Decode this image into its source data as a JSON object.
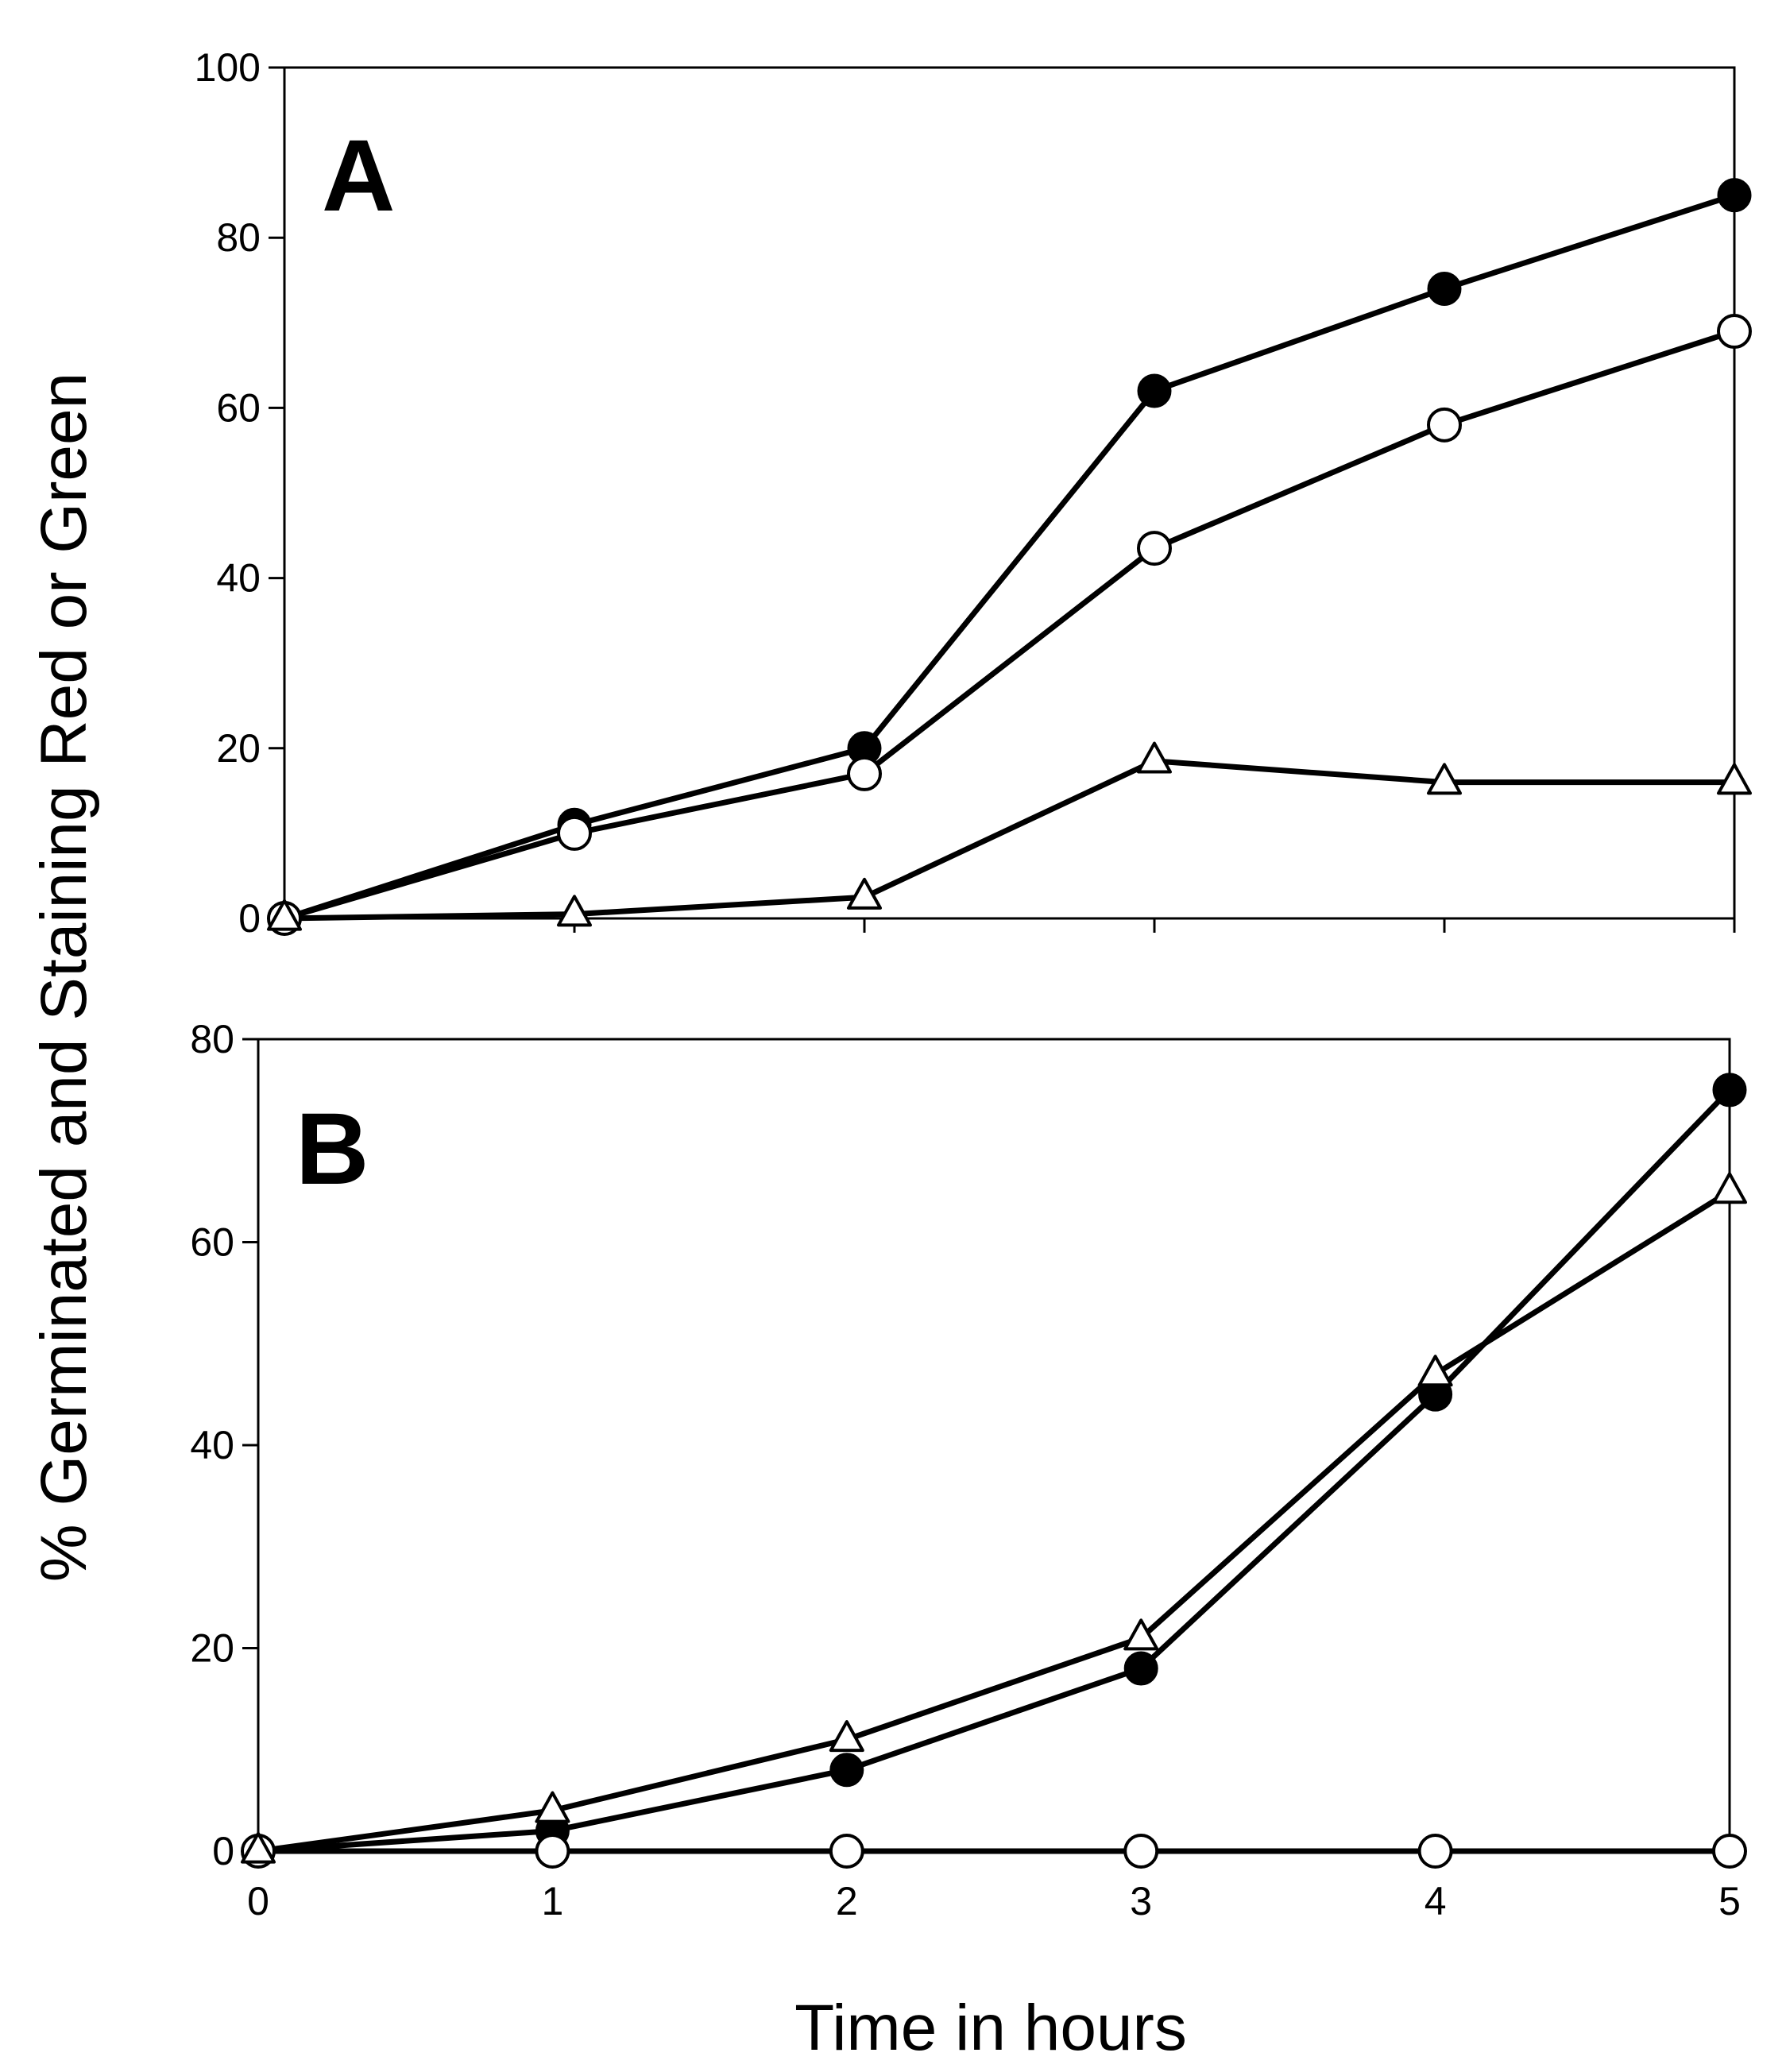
{
  "chart_data": [
    {
      "type": "line",
      "panel_label": "A",
      "x": [
        0,
        1,
        2,
        3,
        4,
        5
      ],
      "ylim": [
        0,
        100
      ],
      "xlim": [
        0,
        5
      ],
      "yticks": [
        0,
        20,
        40,
        60,
        80,
        100
      ],
      "xticks": [
        0,
        1,
        2,
        3,
        4,
        5
      ],
      "show_x_tick_labels": false,
      "grid": false,
      "series": [
        {
          "marker": "filled-circle",
          "values": [
            0,
            11,
            20,
            62,
            74,
            85
          ]
        },
        {
          "marker": "open-circle",
          "values": [
            0,
            10,
            17,
            43.5,
            58,
            69
          ]
        },
        {
          "marker": "open-triangle",
          "values": [
            0,
            0.5,
            2.5,
            18.5,
            16,
            16
          ]
        }
      ]
    },
    {
      "type": "line",
      "panel_label": "B",
      "x": [
        0,
        1,
        2,
        3,
        4,
        5
      ],
      "ylim": [
        0,
        80
      ],
      "xlim": [
        0,
        5
      ],
      "yticks": [
        0,
        20,
        40,
        60,
        80
      ],
      "xticks": [
        0,
        1,
        2,
        3,
        4,
        5
      ],
      "show_x_tick_labels": true,
      "grid": false,
      "series": [
        {
          "marker": "filled-circle",
          "values": [
            0,
            2,
            8,
            18,
            45,
            75
          ]
        },
        {
          "marker": "open-circle",
          "values": [
            0,
            0,
            0,
            0,
            0,
            0
          ]
        },
        {
          "marker": "open-triangle",
          "values": [
            0,
            4,
            11,
            21,
            47,
            65
          ]
        }
      ]
    }
  ],
  "shared_labels": {
    "xlabel": "Time in hours",
    "ylabel": "% Germinated and Staining Red or Green"
  },
  "colors": {
    "line": "#000000",
    "marker_fill_open": "#ffffff",
    "marker_fill_filled": "#000000",
    "background": "#ffffff"
  }
}
